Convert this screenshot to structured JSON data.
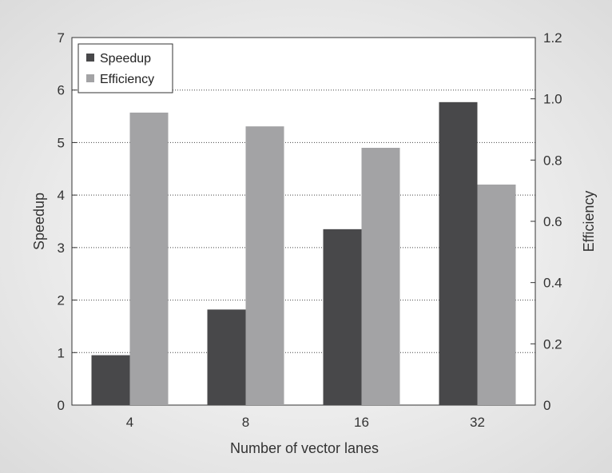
{
  "colors": {
    "speedup": "#48484a",
    "efficiency": "#a3a3a5",
    "plot_background": "#ffffff",
    "frame_gradient_edge": "#d9d9d9",
    "frame_gradient_center": "#ffffff",
    "text": "#333333"
  },
  "chart_data": {
    "type": "bar",
    "title": "",
    "xlabel": "Number of vector lanes",
    "ylabel": "Speedup",
    "y2label": "Efficiency",
    "categories": [
      "4",
      "8",
      "16",
      "32"
    ],
    "ylim": [
      0,
      7
    ],
    "y2lim": [
      0,
      1.2
    ],
    "yticks": [
      "0",
      "1",
      "2",
      "3",
      "4",
      "5",
      "6",
      "7"
    ],
    "y2ticks": [
      "0",
      "0.2",
      "0.4",
      "0.6",
      "0.8",
      "1.0",
      "1.2"
    ],
    "grid": "horizontal dotted",
    "legend_position": "top-left",
    "series": [
      {
        "name": "Speedup",
        "axis": "left",
        "values": [
          0.95,
          1.82,
          3.35,
          5.77
        ]
      },
      {
        "name": "Efficiency",
        "axis": "right",
        "values": [
          0.955,
          0.91,
          0.84,
          0.72
        ]
      }
    ]
  }
}
